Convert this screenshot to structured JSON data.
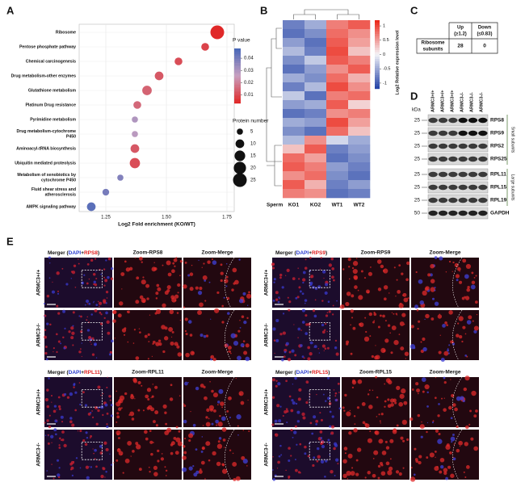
{
  "panel_a": {
    "letter": "A",
    "type": "scatter",
    "categories": [
      [
        "Ribosome"
      ],
      [
        "Pentose phosphate pathway"
      ],
      [
        "Chemical carcinogenesis"
      ],
      [
        "Drug metabolism-other enzymes"
      ],
      [
        "Glutathione metabolism"
      ],
      [
        "Platinum Drug resistance"
      ],
      [
        "Pyrimidine metabolism"
      ],
      [
        "Drug metabolism-cytochrome",
        "P450"
      ],
      [
        "Aminoacyl-tRNA biosynthesis"
      ],
      [
        "Ubiquitin mediated proteolysis"
      ],
      [
        "Metabolism of xenobiotics by",
        "cytochrome P450"
      ],
      [
        "Fluid shear stress and",
        "atherosclerosis"
      ],
      [
        "AMPK signaling pathway"
      ]
    ],
    "x": [
      1.71,
      1.66,
      1.55,
      1.47,
      1.42,
      1.38,
      1.37,
      1.37,
      1.37,
      1.37,
      1.31,
      1.25,
      1.19
    ],
    "p_value": [
      0.003,
      0.008,
      0.01,
      0.012,
      0.014,
      0.015,
      0.03,
      0.028,
      0.012,
      0.01,
      0.038,
      0.04,
      0.045
    ],
    "protein_number": [
      25,
      8,
      8,
      10,
      12,
      8,
      5,
      5,
      10,
      14,
      5,
      6,
      10
    ],
    "xlim": [
      1.14,
      1.78
    ],
    "xticks": [
      1.25,
      {
        "value": 1.5,
        "label": "1.50"
      },
      1.75
    ],
    "x_label": "Log2 Fold enrichment (KO/WT)",
    "color_title": "P value",
    "color_lim": [
      0.003,
      0.048
    ],
    "color_ticks": [
      0.04,
      0.03,
      0.02,
      0.01
    ],
    "size_title": "Protein number",
    "size_ticks": [
      5,
      10,
      15,
      20,
      25
    ]
  },
  "panel_b": {
    "letter": "B",
    "row_label": "Sperm",
    "columns": [
      "KO1",
      "KO2",
      "WT1",
      "WT2"
    ],
    "values": [
      [
        -0.8,
        -0.5,
        0.7,
        0.9
      ],
      [
        -0.9,
        -0.7,
        0.8,
        0.6
      ],
      [
        -0.6,
        -0.9,
        0.9,
        0.5
      ],
      [
        -0.4,
        -0.8,
        1.0,
        0.3
      ],
      [
        -0.7,
        -0.3,
        0.9,
        0.7
      ],
      [
        -0.9,
        -0.6,
        0.6,
        0.9
      ],
      [
        -0.5,
        -0.7,
        0.8,
        0.4
      ],
      [
        -0.8,
        -0.4,
        1.0,
        0.6
      ],
      [
        -0.3,
        -0.9,
        0.7,
        0.8
      ],
      [
        -0.6,
        -0.5,
        0.9,
        0.2
      ],
      [
        -0.9,
        -0.8,
        0.6,
        0.7
      ],
      [
        -0.5,
        -0.6,
        1.0,
        0.5
      ],
      [
        -0.7,
        -0.9,
        0.8,
        0.3
      ],
      [
        -0.4,
        0.6,
        -0.2,
        -0.5
      ],
      [
        0.3,
        0.9,
        -0.8,
        -0.6
      ],
      [
        0.8,
        0.5,
        -0.9,
        -0.7
      ],
      [
        0.9,
        0.7,
        -0.6,
        -0.8
      ],
      [
        0.6,
        0.8,
        -0.7,
        -0.9
      ],
      [
        0.9,
        0.4,
        -0.8,
        -0.6
      ],
      [
        0.7,
        0.6,
        -0.9,
        -0.8
      ]
    ],
    "color_title": "Log2 Relative expression level",
    "color_lim": [
      -1.2,
      1.2
    ],
    "color_ticks": [
      1,
      0.5,
      0,
      -0.5,
      -1
    ]
  },
  "panel_c": {
    "letter": "C",
    "header": [
      [
        "Up",
        "(≥1.2)"
      ],
      [
        "Down",
        "(≤0.83)"
      ]
    ],
    "row_label": [
      "Ribosome",
      "subunits"
    ],
    "values": [
      28,
      0
    ]
  },
  "panel_d": {
    "letter": "D",
    "unit": "kDa",
    "lanes": [
      "ARMC3+/+",
      "ARMC3+/+",
      "ARMC3+/+",
      "ARMC3-/-",
      "ARMC3-/-",
      "ARMC3-/-"
    ],
    "bands": [
      {
        "name": "RPS8",
        "kda": 25
      },
      {
        "name": "RPS9",
        "kda": 25
      },
      {
        "name": "RPS2",
        "kda": 25
      },
      {
        "name": "RPS25",
        "kda": 25
      },
      {
        "name": "RPL11",
        "kda": 25
      },
      {
        "name": "RPL15",
        "kda": 25
      },
      {
        "name": "RPL19",
        "kda": 25
      },
      {
        "name": "GAPDH",
        "kda": 50
      }
    ],
    "groups": [
      "Small subunits",
      "Large subunits"
    ]
  },
  "panel_e": {
    "letter": "E",
    "panels": [
      {
        "merger": [
          "Merger (",
          "DAPI",
          "+",
          "RPS8",
          ")"
        ],
        "zoom": "Zoom-RPS8",
        "zoom_merge": "Zoom-Merge",
        "rows": [
          "ARMC3+/+",
          "ARMC3-/-"
        ]
      },
      {
        "merger": [
          "Merger (",
          "DAPI",
          "+",
          "RPS9",
          ")"
        ],
        "zoom": "Zoom-RPS9",
        "zoom_merge": "Zoom-Merge",
        "rows": [
          "ARMC3+/+",
          "ARMC3-/-"
        ]
      },
      {
        "merger": [
          "Merger (",
          "DAPI",
          "+",
          "RPL11",
          ")"
        ],
        "zoom": "Zoom-RPL11",
        "zoom_merge": "Zoom-Merge",
        "rows": [
          "ARMC3+/+",
          "ARMC3-/-"
        ]
      },
      {
        "merger": [
          "Merger (",
          "DAPI",
          "+",
          "RPL15",
          ")"
        ],
        "zoom": "Zoom-RPL15",
        "zoom_merge": "Zoom-Merge",
        "rows": [
          "ARMC3+/+",
          "ARMC3-/-"
        ]
      }
    ]
  }
}
